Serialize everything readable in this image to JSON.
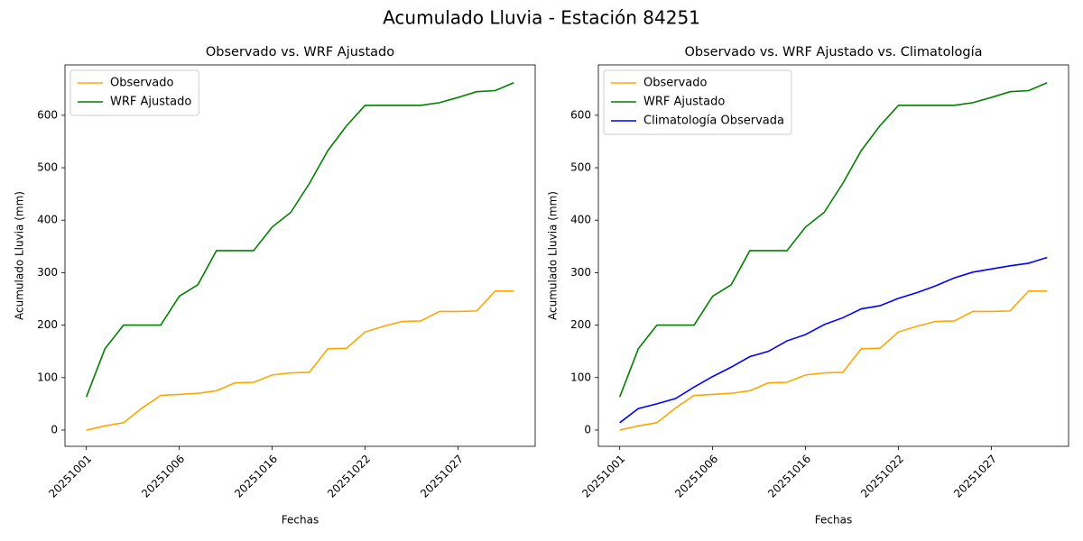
{
  "title": "Acumulado Lluvia - Estación 84251",
  "chart_data": [
    {
      "type": "line",
      "title": "Observado vs. WRF Ajustado",
      "x_label": "Fechas",
      "y_label": "Acumulado Lluvia (mm)",
      "categories": [
        "20251001",
        null,
        null,
        null,
        null,
        "20251006",
        null,
        null,
        null,
        null,
        "20251016",
        null,
        null,
        null,
        null,
        "20251022",
        null,
        null,
        null,
        null,
        "20251027",
        null,
        null,
        null
      ],
      "series": [
        {
          "name": "Observado",
          "color": "orange",
          "values": [
            0,
            8,
            14,
            42,
            66,
            68,
            70,
            75,
            90,
            91,
            105,
            109,
            110,
            155,
            156,
            187,
            198,
            207,
            208,
            226,
            226,
            227,
            265,
            265
          ]
        },
        {
          "name": "WRF Ajustado",
          "color": "green",
          "values": [
            63,
            155,
            200,
            200,
            200,
            255,
            277,
            342,
            342,
            342,
            387,
            415,
            470,
            533,
            580,
            619,
            619,
            619,
            619,
            624,
            634,
            645,
            647,
            662
          ]
        }
      ],
      "ylim": [
        -31,
        696
      ],
      "yticks": [
        0,
        100,
        200,
        300,
        400,
        500,
        600
      ],
      "legend": "upper left"
    },
    {
      "type": "line",
      "title": "Observado vs. WRF Ajustado vs. Climatología",
      "x_label": "Fechas",
      "y_label": "Acumulado Lluvia (mm)",
      "categories": [
        "20251001",
        null,
        null,
        null,
        null,
        "20251006",
        null,
        null,
        null,
        null,
        "20251016",
        null,
        null,
        null,
        null,
        "20251022",
        null,
        null,
        null,
        null,
        "20251027",
        null,
        null,
        null
      ],
      "series": [
        {
          "name": "Observado",
          "color": "orange",
          "values": [
            0,
            8,
            14,
            42,
            66,
            68,
            70,
            75,
            90,
            91,
            105,
            109,
            110,
            155,
            156,
            187,
            198,
            207,
            208,
            226,
            226,
            227,
            265,
            265
          ]
        },
        {
          "name": "WRF Ajustado",
          "color": "green",
          "values": [
            63,
            155,
            200,
            200,
            200,
            255,
            277,
            342,
            342,
            342,
            387,
            415,
            470,
            533,
            580,
            619,
            619,
            619,
            619,
            624,
            634,
            645,
            647,
            662
          ]
        },
        {
          "name": "Climatología Observada",
          "color": "blue",
          "values": [
            14,
            41,
            50,
            60,
            82,
            102,
            120,
            140,
            150,
            170,
            182,
            201,
            214,
            231,
            237,
            251,
            262,
            275,
            290,
            301,
            307,
            313,
            318,
            329
          ]
        }
      ],
      "ylim": [
        -31,
        696
      ],
      "yticks": [
        0,
        100,
        200,
        300,
        400,
        500,
        600
      ],
      "legend": "upper left"
    }
  ]
}
